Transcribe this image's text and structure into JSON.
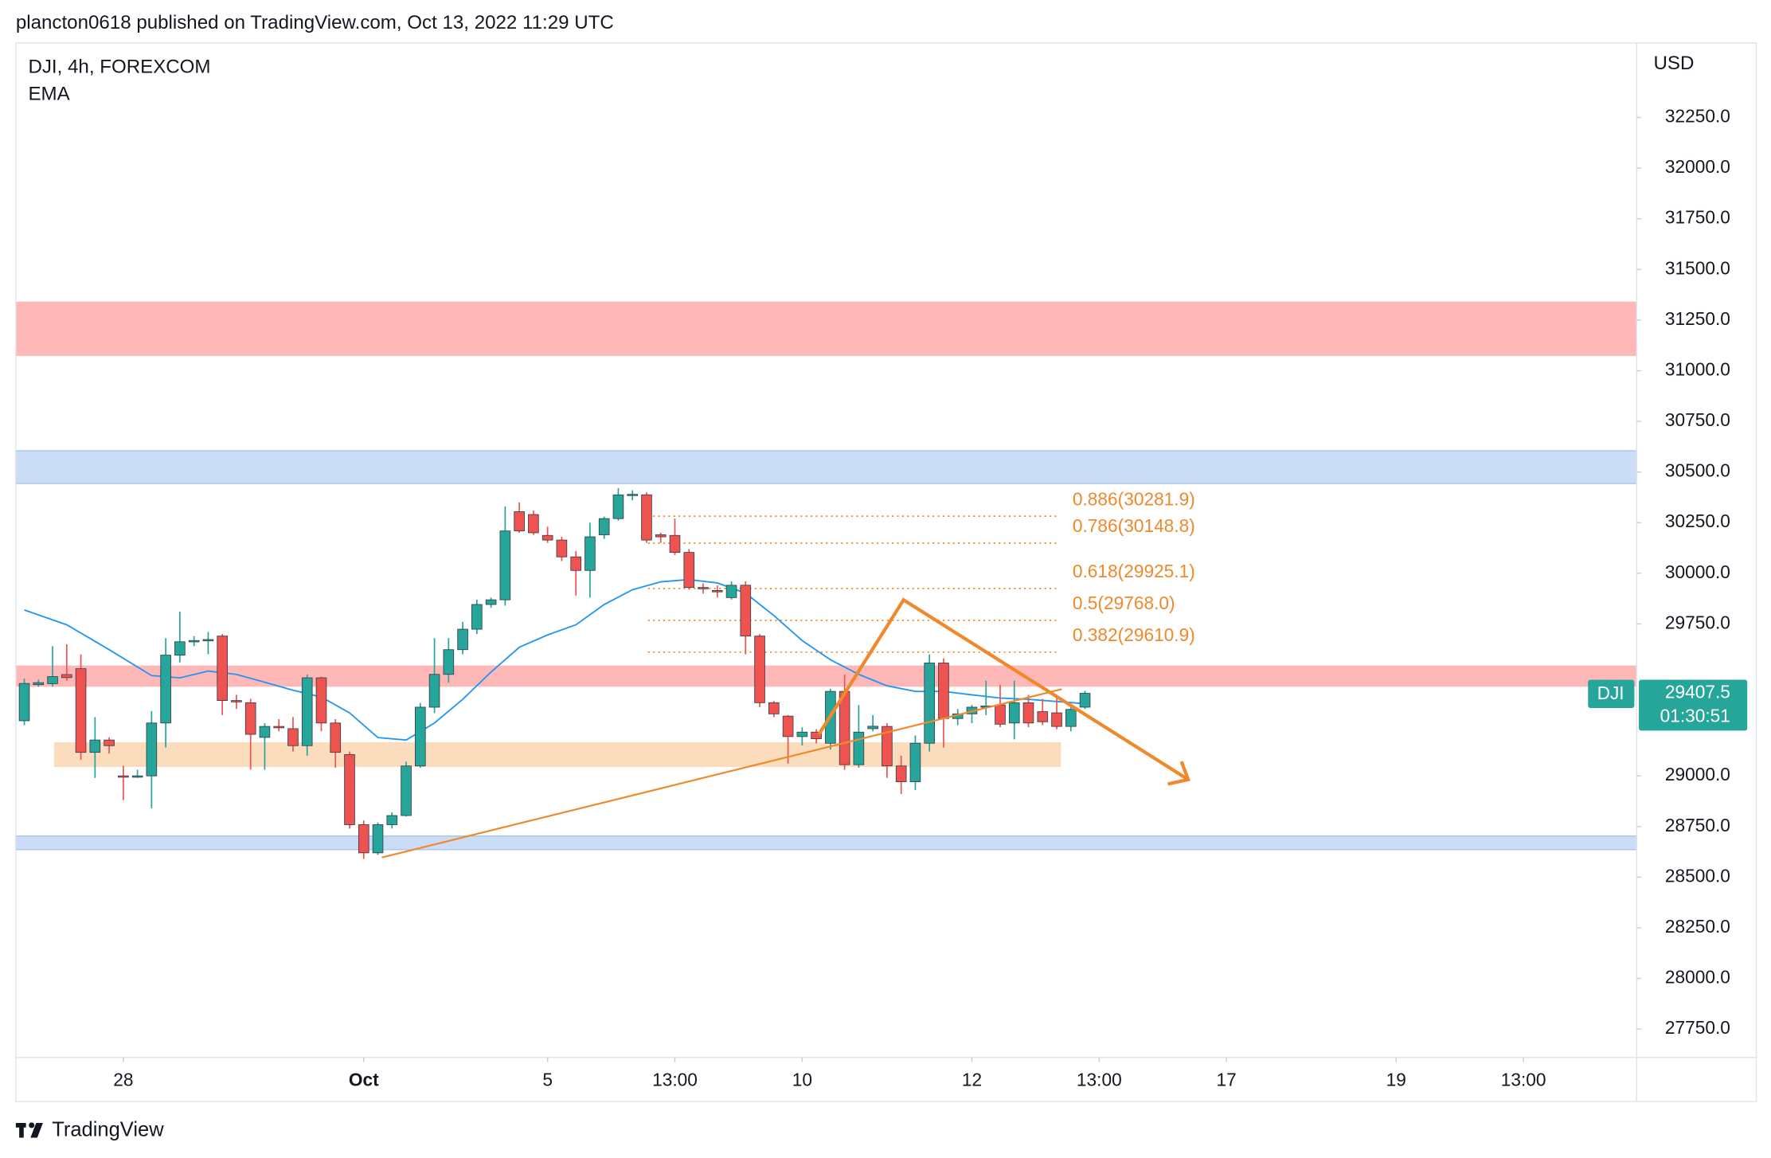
{
  "header": "plancton0618 published on TradingView.com, Oct 13, 2022 11:29 UTC",
  "footer": {
    "brand": "TradingView"
  },
  "chart_data": {
    "type": "candlestick",
    "title": "DJI, 4h, FOREXCOM",
    "currency": "USD",
    "up_color": "#26a69a",
    "down_color": "#ef5350",
    "open": [
      29272,
      29450,
      29455,
      29500,
      29529,
      29116,
      29177,
      29000,
      28999,
      29000,
      29261,
      29596,
      29665,
      29670,
      29690,
      29372,
      29361,
      29190,
      29244,
      29233,
      29149,
      29484,
      29261,
      29105,
      28759,
      28620,
      28759,
      28804,
      29049,
      29339,
      29501,
      29623,
      29724,
      29846,
      29869,
      30304,
      30290,
      30187,
      30164,
      30081,
      30014,
      30190,
      30270,
      30387,
      30387,
      30190,
      30187,
      30103,
      29930,
      29915,
      29880,
      29941,
      29690,
      29361,
      29295,
      29194,
      29216,
      29161,
      29417,
      29055,
      29233,
      29244,
      29049,
      28971,
      29161,
      29557,
      29283,
      29306,
      29339,
      29350,
      29261,
      29361,
      29317,
      29311,
      29244,
      29339
    ],
    "high": [
      29480,
      29475,
      29640,
      29650,
      29600,
      29290,
      29190,
      29050,
      29030,
      29320,
      29680,
      29810,
      29690,
      29710,
      29700,
      29400,
      29380,
      29260,
      29280,
      29290,
      29500,
      29490,
      29280,
      29120,
      28780,
      28770,
      28820,
      29070,
      29360,
      29680,
      29680,
      29760,
      29870,
      29880,
      30330,
      30350,
      30310,
      30230,
      30180,
      30110,
      30250,
      30280,
      30420,
      30410,
      30400,
      30200,
      30270,
      30120,
      29950,
      29940,
      29960,
      29960,
      29700,
      29370,
      29300,
      29240,
      29230,
      29430,
      29500,
      29350,
      29300,
      29260,
      29100,
      29200,
      29600,
      29580,
      29330,
      29350,
      29470,
      29450,
      29470,
      29400,
      29380,
      29390,
      29350,
      29420
    ],
    "low": [
      29250,
      29440,
      29440,
      29470,
      29080,
      28990,
      29110,
      28880,
      28990,
      28840,
      29140,
      29560,
      29640,
      29600,
      29300,
      29330,
      29030,
      29030,
      29220,
      29120,
      29100,
      29220,
      29040,
      28740,
      28590,
      28610,
      28740,
      28800,
      29040,
      29310,
      29460,
      29600,
      29700,
      29830,
      29840,
      30200,
      30190,
      30150,
      30060,
      29890,
      29880,
      30170,
      30260,
      30360,
      30150,
      30150,
      30090,
      29920,
      29900,
      29880,
      29870,
      29600,
      29340,
      29290,
      29060,
      29150,
      29160,
      29130,
      29030,
      29040,
      29220,
      28990,
      28910,
      28930,
      29120,
      29140,
      29250,
      29260,
      29300,
      29240,
      29180,
      29240,
      29250,
      29230,
      29220,
      29330
    ],
    "close": [
      29456,
      29460,
      29490,
      29485,
      29116,
      29177,
      29149,
      28999,
      29000,
      29261,
      29596,
      29662,
      29668,
      29673,
      29372,
      29365,
      29205,
      29244,
      29240,
      29149,
      29484,
      29261,
      29116,
      28759,
      28620,
      28759,
      28804,
      29049,
      29339,
      29501,
      29623,
      29724,
      29846,
      29869,
      30209,
      30209,
      30200,
      30164,
      30081,
      30014,
      30180,
      30270,
      30387,
      30390,
      30164,
      30180,
      30103,
      29930,
      29925,
      29910,
      29941,
      29690,
      29361,
      29306,
      29194,
      29216,
      29183,
      29417,
      29055,
      29216,
      29245,
      29049,
      28971,
      29161,
      29557,
      29283,
      29306,
      29339,
      29345,
      29255,
      29361,
      29261,
      29267,
      29244,
      29328,
      29407.5
    ],
    "indicator": {
      "name": "EMA",
      "color": "#2196f3",
      "x": [
        0,
        3,
        6,
        9,
        11,
        13,
        15,
        17,
        19,
        21,
        23,
        25,
        27,
        29,
        31,
        33,
        35,
        37,
        39,
        41,
        43,
        45,
        47,
        49,
        51,
        53,
        55,
        57,
        59,
        61,
        63,
        65,
        67,
        69,
        71,
        73,
        75
      ],
      "values": [
        29819,
        29746,
        29623,
        29495,
        29484,
        29517,
        29501,
        29462,
        29423,
        29389,
        29311,
        29189,
        29177,
        29261,
        29378,
        29512,
        29635,
        29696,
        29746,
        29846,
        29919,
        29958,
        29969,
        29952,
        29902,
        29791,
        29668,
        29573,
        29501,
        29445,
        29417,
        29417,
        29400,
        29384,
        29378,
        29367,
        29356
      ]
    },
    "price_tag": {
      "symbol": "DJI",
      "countdown": "01:30:51",
      "color": "#26a69a"
    },
    "zones": [
      {
        "from": 31073,
        "to": 31341,
        "color": "#ffb8b8"
      },
      {
        "from": 30443,
        "to": 30605,
        "color": "#cbdcf7",
        "border": "#a9c6f0"
      },
      {
        "from": 29440,
        "to": 29545,
        "color": "#ffb8b8"
      },
      {
        "from": 29044,
        "to": 29166,
        "color": "#fbdcbc",
        "x": [
          2.1,
          73.3
        ]
      },
      {
        "from": 28636,
        "to": 28703,
        "color": "#cbdcf7",
        "border": "#a9c6f0"
      }
    ],
    "fib_levels": {
      "color": "#f0892b",
      "x": [
        44.1,
        73.0
      ],
      "levels": [
        {
          "value": 30281.9,
          "label": "0.886(30281.9)"
        },
        {
          "value": 30148.8,
          "label": "0.786(30148.8)"
        },
        {
          "value": 29925.1,
          "label": "0.618(29925.1)"
        },
        {
          "value": 29768.0,
          "label": "0.5(29768.0)"
        },
        {
          "value": 29610.9,
          "label": "0.382(29610.9)"
        }
      ]
    },
    "xlim": [
      -0.6,
      114
    ],
    "xticks": [
      {
        "value": 7,
        "label": "28"
      },
      {
        "value": 24,
        "label": "Oct",
        "bold": true
      },
      {
        "value": 37,
        "label": "5"
      },
      {
        "value": 46,
        "label": "13:00"
      },
      {
        "value": 55,
        "label": "10"
      },
      {
        "value": 67,
        "label": "12"
      },
      {
        "value": 76,
        "label": "13:00"
      },
      {
        "value": 85,
        "label": "17"
      },
      {
        "value": 97,
        "label": "19"
      },
      {
        "value": 106,
        "label": "13:00"
      }
    ],
    "ylim": [
      27610,
      32618
    ],
    "yticks": [
      {
        "value": 27750,
        "label": "27750.0"
      },
      {
        "value": 28000,
        "label": "28000.0"
      },
      {
        "value": 28250,
        "label": "28250.0"
      },
      {
        "value": 28500,
        "label": "28500.0"
      },
      {
        "value": 28750,
        "label": "28750.0"
      },
      {
        "value": 29000,
        "label": "29000.0"
      },
      {
        "value": 29750,
        "label": "29750.0"
      },
      {
        "value": 30000,
        "label": "30000.0"
      },
      {
        "value": 30250,
        "label": "30250.0"
      },
      {
        "value": 30500,
        "label": "30500.0"
      },
      {
        "value": 30750,
        "label": "30750.0"
      },
      {
        "value": 31000,
        "label": "31000.0"
      },
      {
        "value": 31250,
        "label": "31250.0"
      },
      {
        "value": 31500,
        "label": "31500.0"
      },
      {
        "value": 31750,
        "label": "31750.0"
      },
      {
        "value": 32000,
        "label": "32000.0"
      },
      {
        "value": 32250,
        "label": "32250.0"
      }
    ],
    "grid": false
  }
}
